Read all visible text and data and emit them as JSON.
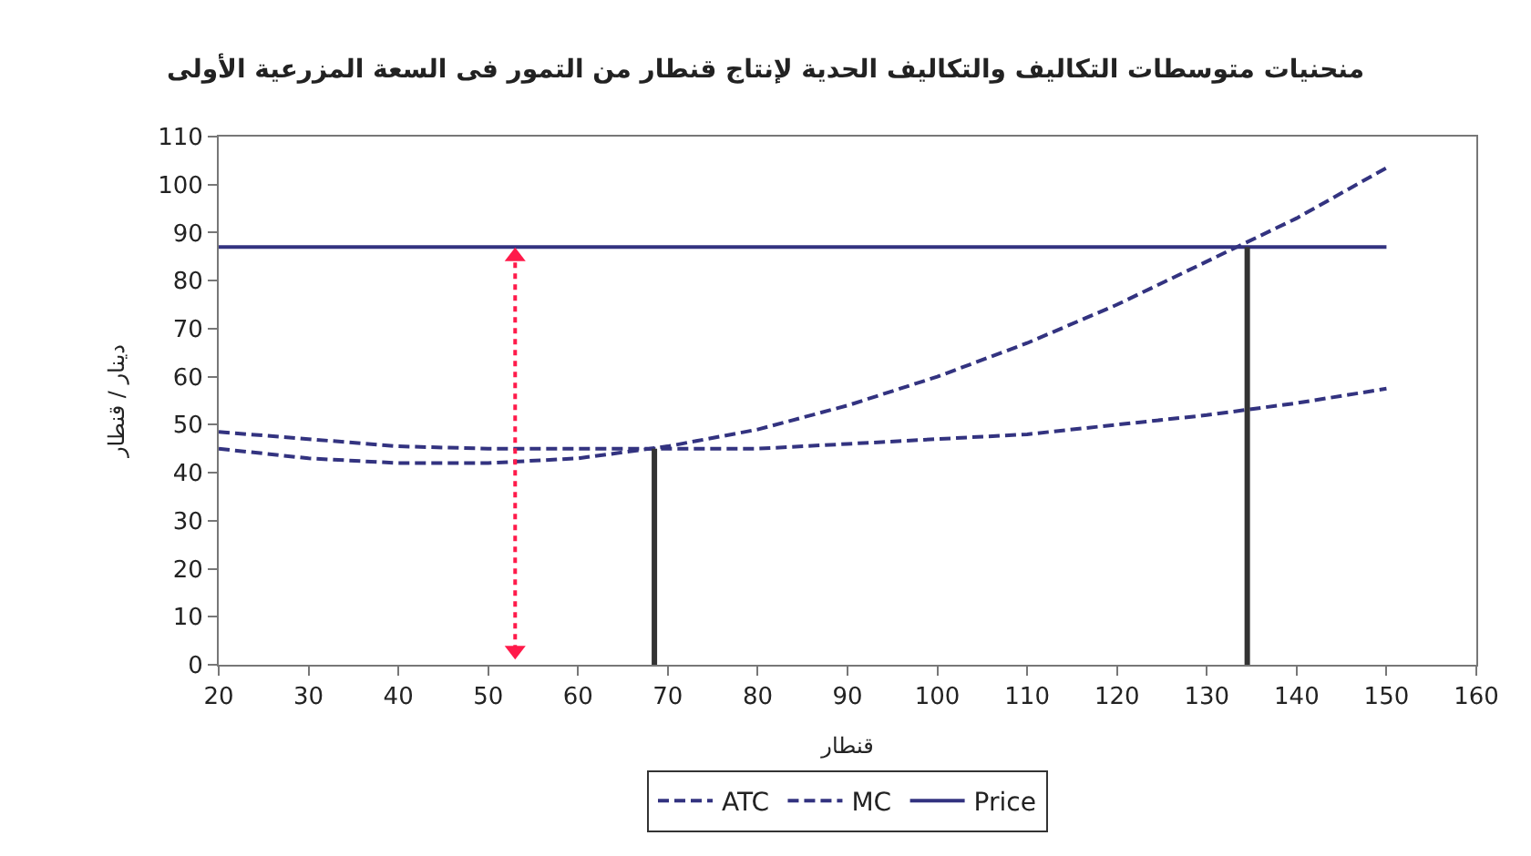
{
  "chart_data": {
    "type": "line",
    "title": "منحنيات متوسطات التكاليف والتكاليف الحدية لإنتاج قنطار من التمور فى السعة المزرعية الأولى",
    "xlabel": "قنطار",
    "ylabel": "دينار / قنطار",
    "x": [
      20,
      30,
      40,
      50,
      60,
      70,
      80,
      90,
      100,
      110,
      120,
      130,
      140,
      150
    ],
    "series": [
      {
        "name": "ATC",
        "color": "#333380",
        "line_style": "dashed",
        "values": [
          48.5,
          47,
          45.5,
          45,
          45,
          45,
          45,
          46,
          47,
          48,
          50,
          52,
          54.5,
          57.5
        ]
      },
      {
        "name": "MC",
        "color": "#333380",
        "line_style": "dashed",
        "values": [
          45,
          43,
          42,
          42,
          43,
          45.5,
          49,
          54,
          60,
          67,
          75,
          84,
          93,
          103.5
        ]
      },
      {
        "name": "Price",
        "color": "#333380",
        "line_style": "solid",
        "values": [
          87,
          87,
          87,
          87,
          87,
          87,
          87,
          87,
          87,
          87,
          87,
          87,
          87,
          87
        ]
      },
      {
        "color": "#333333",
        "line_style": "solid",
        "x": [
          68.5,
          68.5
        ],
        "values": [
          0,
          45
        ]
      },
      {
        "color": "#333333",
        "line_style": "solid",
        "x": [
          134.5,
          134.5
        ],
        "values": [
          0,
          87
        ]
      },
      {
        "color": "#ff1a4a",
        "line_style": "dotted",
        "marker": "triangle",
        "x": [
          53,
          53
        ],
        "values": [
          3,
          85
        ]
      }
    ],
    "xlim": [
      20,
      160
    ],
    "xticks": [
      20,
      30,
      40,
      50,
      60,
      70,
      80,
      90,
      100,
      110,
      120,
      130,
      140,
      150,
      160
    ],
    "ylim": [
      0,
      110
    ],
    "yticks": [
      0,
      10,
      20,
      30,
      40,
      50,
      60,
      70,
      80,
      90,
      100,
      110
    ],
    "grid": false,
    "legend": "bottom",
    "marker": "none"
  }
}
